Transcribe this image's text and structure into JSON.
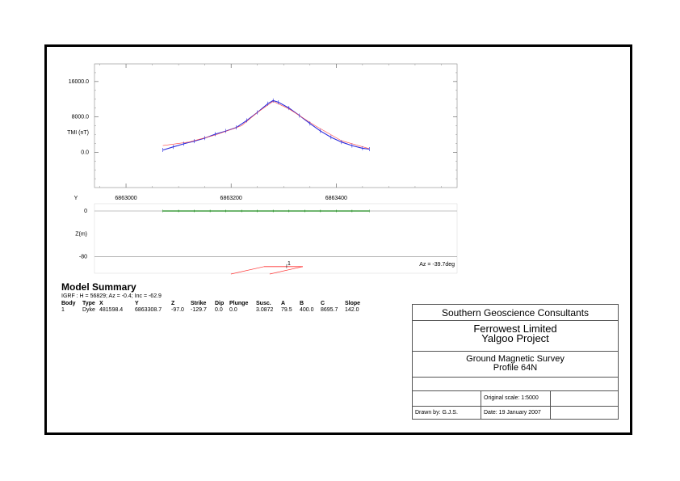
{
  "chart_data": [
    {
      "type": "line",
      "title": "",
      "xlabel": "Y",
      "ylabel": "TMI (nT)",
      "xlim": [
        6862940,
        6863630
      ],
      "ylim": [
        -8000,
        20000
      ],
      "x_ticks": [
        6863000,
        6863200,
        6863400
      ],
      "x_tick_labels": [
        "6863000",
        "6863200",
        "6863400"
      ],
      "y_ticks": [
        16000,
        8000,
        0
      ],
      "y_tick_labels": [
        "16000.0",
        "8000.0",
        "0.0"
      ],
      "grid": false,
      "series": [
        {
          "x": [
            6863070,
            6863090,
            6863110,
            6863130,
            6863150,
            6863170,
            6863190,
            6863210,
            6863230,
            6863250,
            6863270,
            6863280,
            6863290,
            6863310,
            6863330,
            6863350,
            6863370,
            6863390,
            6863410,
            6863430,
            6863450,
            6863463
          ],
          "y": [
            500,
            1200,
            1900,
            2500,
            3200,
            4100,
            4800,
            5600,
            7200,
            9000,
            11000,
            11700,
            11300,
            10000,
            8300,
            6500,
            4800,
            3400,
            2300,
            1500,
            900,
            700
          ],
          "color": "#2b2bdc"
        },
        {
          "x": [
            6863070,
            6863120,
            6863170,
            6863220,
            6863250,
            6863280,
            6863310,
            6863360,
            6863410,
            6863463
          ],
          "y": [
            1500,
            2300,
            3900,
            6000,
            9000,
            11500,
            9800,
            6000,
            2600,
            800
          ],
          "color": "#ff4444"
        }
      ]
    },
    {
      "type": "scatter",
      "title": "",
      "xlabel": "",
      "ylabel": "Z(m)",
      "xlim": [
        6862940,
        6863630
      ],
      "ylim": [
        -110,
        0
      ],
      "y_ticks": [
        0,
        -80
      ],
      "y_tick_labels": [
        "0",
        "-80"
      ],
      "annotations": [
        "Az = -39.7deg"
      ],
      "series": [
        {
          "x": [
            6863070,
            6863100,
            6863130,
            6863160,
            6863190,
            6863220,
            6863250,
            6863280,
            6863310,
            6863340,
            6863370,
            6863400,
            6863430,
            6863463
          ],
          "y": [
            0,
            0,
            0,
            0,
            0,
            0,
            0,
            0,
            0,
            0,
            0,
            0,
            0,
            0
          ],
          "color": "#1a8a1a"
        }
      ],
      "body_label": "1"
    }
  ],
  "summary": {
    "title": "Model Summary",
    "igrf": "IGRF :   H = 56829;  Az = -0.4;  Inc = -62.9",
    "headers": [
      "Body",
      "Type",
      "X",
      "Y",
      "Z",
      "Strike",
      "Dip",
      "Plunge",
      "Susc.",
      "A",
      "B",
      "C",
      "Slope"
    ],
    "row": [
      "1",
      "Dyke",
      "481598.4",
      "6863308.7",
      "-97.0",
      "-129.7",
      "0.0",
      "0.0",
      "3.0872",
      "79.5",
      "400.0",
      "8695.7",
      "142.0"
    ]
  },
  "titleblock": {
    "company": "Southern Geoscience Consultants",
    "client_line1": "Ferrowest Limited",
    "client_line2": "Yalgoo Project",
    "survey_line1": "Ground Magnetic Survey",
    "survey_line2": "Profile 64N",
    "scale": "Original scale: 1:5000",
    "drawn_by": "Drawn by: G.J.S.",
    "date": "Date: 19 January 2007"
  },
  "colors": {
    "observed": "#2b2bdc",
    "calculated": "#ff4444",
    "stations": "#1a8a1a",
    "axes": "#888888"
  }
}
